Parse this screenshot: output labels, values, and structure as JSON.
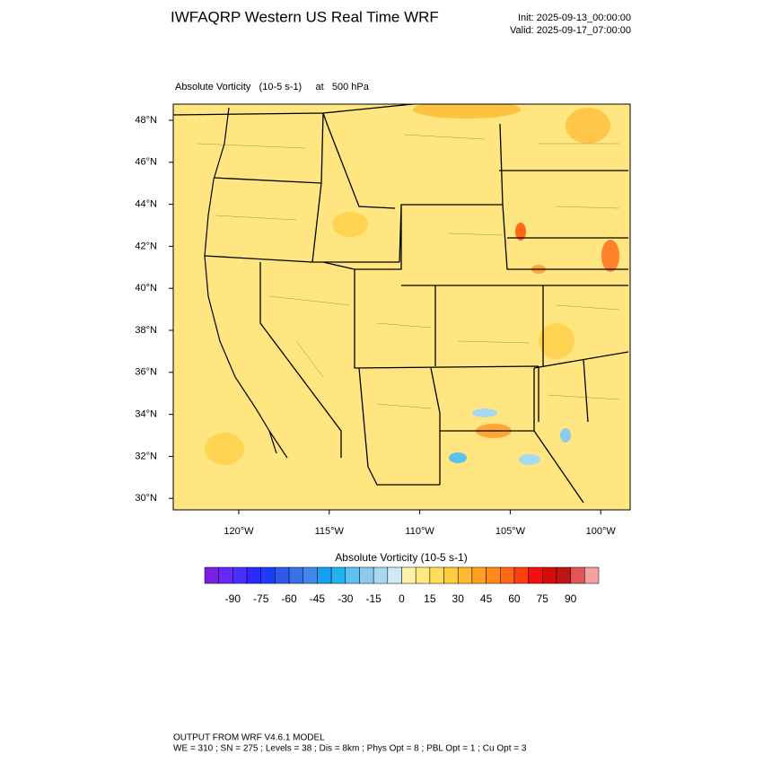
{
  "header": {
    "title": "IWFAQRP Western US Real Time WRF",
    "init": "Init: 2025-09-13_00:00:00",
    "valid": "Valid: 2025-09-17_07:00:00"
  },
  "map": {
    "subtitle": "Absolute Vorticity   (10-5 s-1)     at   500 hPa",
    "lat_labels": [
      "48°N",
      "46°N",
      "44°N",
      "42°N",
      "40°N",
      "38°N",
      "36°N",
      "34°N",
      "32°N",
      "30°N"
    ],
    "lon_labels": [
      "120°W",
      "115°W",
      "110°W",
      "105°W",
      "100°W"
    ]
  },
  "colorbar": {
    "title": "Absolute Vorticity  (10-5 s-1)",
    "ticks": [
      -90,
      -75,
      -60,
      -45,
      -30,
      -15,
      0,
      15,
      30,
      45,
      60,
      75,
      90
    ],
    "colors": [
      "#7a1fe0",
      "#6628f2",
      "#4a30ff",
      "#2a2aff",
      "#1e3aff",
      "#2e58e8",
      "#3a70e8",
      "#3d88e8",
      "#16a0f0",
      "#22b2f0",
      "#5ec0ee",
      "#8ccbf0",
      "#a8d8f2",
      "#cfe8f5",
      "#fff2a8",
      "#ffe880",
      "#ffdc5a",
      "#ffcc40",
      "#ffb830",
      "#ffa020",
      "#ff8a1a",
      "#ff6814",
      "#ff3e10",
      "#f01010",
      "#d80a0a",
      "#c01414",
      "#e05555",
      "#f4a0a0"
    ]
  },
  "footer": {
    "line1": "OUTPUT FROM WRF V4.6.1 MODEL",
    "line2": "WE = 310 ; SN = 275 ; Levels = 38 ; Dis = 8km ; Phys Opt = 8 ; PBL Opt = 1 ; Cu Opt = 3"
  }
}
